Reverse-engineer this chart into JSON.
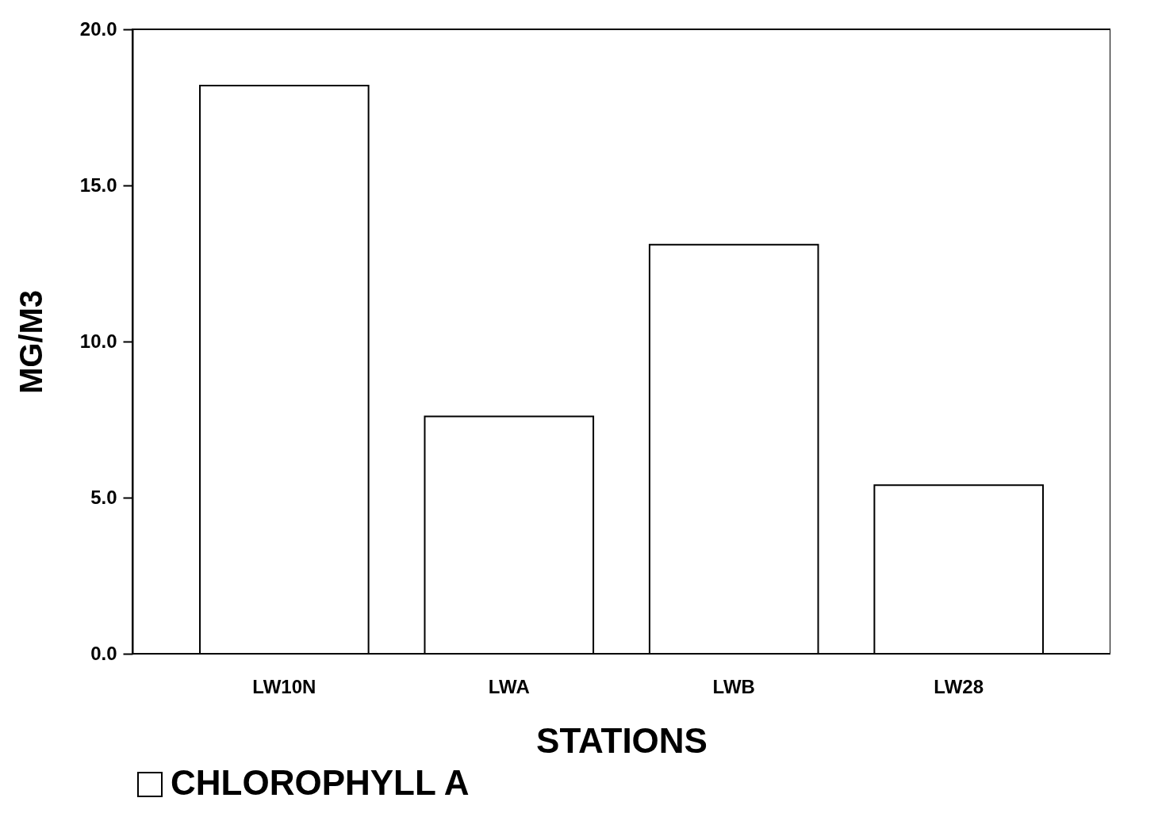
{
  "chart_data": {
    "type": "bar",
    "xlabel": "STATIONS",
    "ylabel": "MG/M3",
    "categories": [
      "LW10N",
      "LWA",
      "LWB",
      "LW28"
    ],
    "series": [
      {
        "name": "CHLOROPHYLL A",
        "color": "#ffffff",
        "values": [
          18.2,
          7.6,
          13.1,
          5.4
        ]
      }
    ],
    "ylim": [
      0,
      20
    ],
    "yticks": [
      {
        "value": 0,
        "label": "0.0"
      },
      {
        "value": 5,
        "label": "5.0"
      },
      {
        "value": 10,
        "label": "10.0"
      },
      {
        "value": 15,
        "label": "15.0"
      },
      {
        "value": 20,
        "label": "20.0"
      }
    ],
    "grid": false,
    "legend": "bottom"
  }
}
